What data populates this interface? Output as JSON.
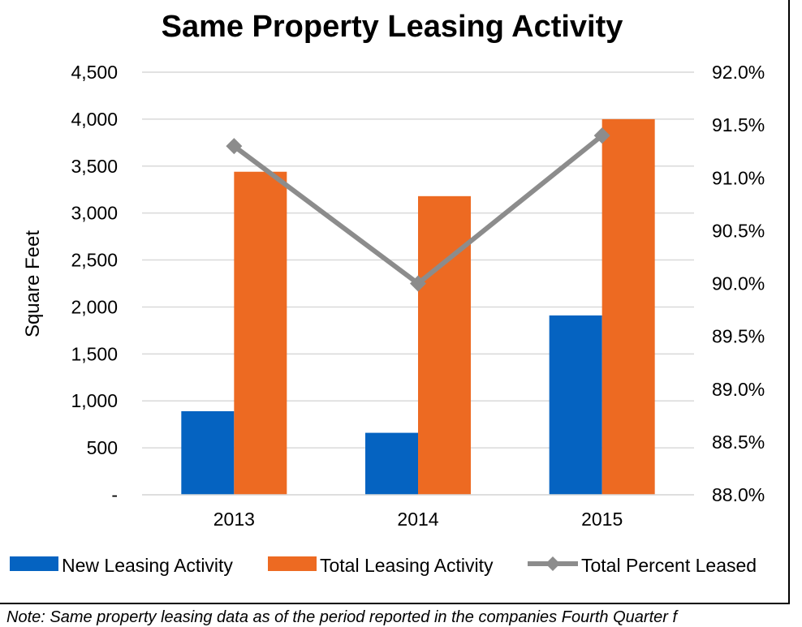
{
  "chart_data": {
    "type": "bar",
    "title": "Same Property Leasing Activity",
    "ylabel": "Square Feet",
    "y2label": "",
    "categories": [
      "2013",
      "2014",
      "2015"
    ],
    "ylim": [
      0,
      4500
    ],
    "y_ticks": [
      "-",
      "500",
      "1,000",
      "1,500",
      "2,000",
      "2,500",
      "3,000",
      "3,500",
      "4,000",
      "4,500"
    ],
    "y2lim": [
      88.0,
      92.0
    ],
    "y2_ticks": [
      "88.0%",
      "88.5%",
      "89.0%",
      "89.5%",
      "90.0%",
      "90.5%",
      "91.0%",
      "91.5%",
      "92.0%"
    ],
    "grid": true,
    "legend_position": "bottom",
    "series": [
      {
        "name": "New Leasing Activity",
        "kind": "bar",
        "axis": "left",
        "color": "#0563C1",
        "values": [
          890,
          660,
          1910
        ]
      },
      {
        "name": "Total Leasing Activity",
        "kind": "bar",
        "axis": "left",
        "color": "#ED6A22",
        "values": [
          3440,
          3180,
          4000
        ]
      },
      {
        "name": "Total Percent Leased",
        "kind": "line",
        "axis": "right",
        "color": "#8C8C8C",
        "marker": "diamond",
        "values": [
          91.3,
          90.0,
          91.4
        ]
      }
    ]
  },
  "note": "Note: Same property leasing data as of the period reported in the companies Fourth Quarter f"
}
